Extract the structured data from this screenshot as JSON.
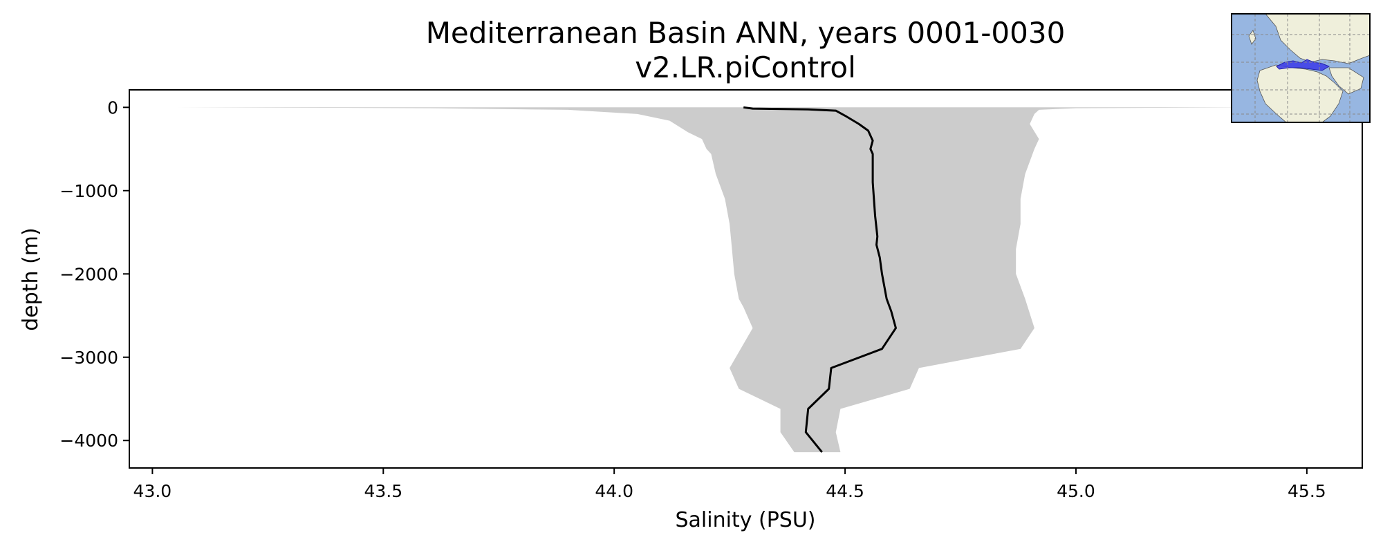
{
  "chart_data": {
    "type": "line",
    "title": "Mediterranean Basin ANN, years 0001-0030",
    "subtitle": "v2.LR.piControl",
    "xlabel": "Salinity (PSU)",
    "ylabel": "depth (m)",
    "xlim": [
      42.95,
      45.62
    ],
    "ylim": [
      -4330,
      210
    ],
    "xticks": [
      {
        "value": 43.0,
        "label": "43.0"
      },
      {
        "value": 43.5,
        "label": "43.5"
      },
      {
        "value": 44.0,
        "label": "44.0"
      },
      {
        "value": 44.5,
        "label": "44.5"
      },
      {
        "value": 45.0,
        "label": "45.0"
      },
      {
        "value": 45.5,
        "label": "45.5"
      }
    ],
    "yticks": [
      {
        "value": 0,
        "label": "0"
      },
      {
        "value": -1000,
        "label": "−1000"
      },
      {
        "value": -2000,
        "label": "−2000"
      },
      {
        "value": -3000,
        "label": "−3000"
      },
      {
        "value": -4000,
        "label": "−4000"
      }
    ],
    "grid": false,
    "colors": {
      "mean_line": "#000000",
      "range_fill": "#cccccc",
      "axes": "#000000"
    },
    "mean_profile": [
      {
        "x": 44.28,
        "y": 0
      },
      {
        "x": 44.3,
        "y": -15
      },
      {
        "x": 44.42,
        "y": -25
      },
      {
        "x": 44.48,
        "y": -40
      },
      {
        "x": 44.5,
        "y": -100
      },
      {
        "x": 44.53,
        "y": -200
      },
      {
        "x": 44.55,
        "y": -280
      },
      {
        "x": 44.56,
        "y": -400
      },
      {
        "x": 44.555,
        "y": -500
      },
      {
        "x": 44.56,
        "y": -560
      },
      {
        "x": 44.56,
        "y": -900
      },
      {
        "x": 44.565,
        "y": -1300
      },
      {
        "x": 44.57,
        "y": -1550
      },
      {
        "x": 44.568,
        "y": -1650
      },
      {
        "x": 44.575,
        "y": -1800
      },
      {
        "x": 44.58,
        "y": -2000
      },
      {
        "x": 44.59,
        "y": -2300
      },
      {
        "x": 44.6,
        "y": -2450
      },
      {
        "x": 44.61,
        "y": -2650
      },
      {
        "x": 44.58,
        "y": -2900
      },
      {
        "x": 44.47,
        "y": -3130
      },
      {
        "x": 44.465,
        "y": -3380
      },
      {
        "x": 44.42,
        "y": -3620
      },
      {
        "x": 44.415,
        "y": -3900
      },
      {
        "x": 44.45,
        "y": -4140
      }
    ],
    "range_band": {
      "min": [
        {
          "x": 43.05,
          "y": 0
        },
        {
          "x": 43.6,
          "y": -10
        },
        {
          "x": 43.9,
          "y": -30
        },
        {
          "x": 44.05,
          "y": -80
        },
        {
          "x": 44.12,
          "y": -160
        },
        {
          "x": 44.16,
          "y": -300
        },
        {
          "x": 44.19,
          "y": -380
        },
        {
          "x": 44.2,
          "y": -500
        },
        {
          "x": 44.21,
          "y": -560
        },
        {
          "x": 44.22,
          "y": -800
        },
        {
          "x": 44.24,
          "y": -1100
        },
        {
          "x": 44.25,
          "y": -1400
        },
        {
          "x": 44.255,
          "y": -1700
        },
        {
          "x": 44.26,
          "y": -2000
        },
        {
          "x": 44.27,
          "y": -2300
        },
        {
          "x": 44.28,
          "y": -2400
        },
        {
          "x": 44.3,
          "y": -2650
        },
        {
          "x": 44.25,
          "y": -3130
        },
        {
          "x": 44.27,
          "y": -3380
        },
        {
          "x": 44.36,
          "y": -3620
        },
        {
          "x": 44.36,
          "y": -3900
        },
        {
          "x": 44.39,
          "y": -4140
        }
      ],
      "max": [
        {
          "x": 45.42,
          "y": 0
        },
        {
          "x": 45.0,
          "y": -10
        },
        {
          "x": 44.92,
          "y": -30
        },
        {
          "x": 44.91,
          "y": -80
        },
        {
          "x": 44.9,
          "y": -200
        },
        {
          "x": 44.92,
          "y": -380
        },
        {
          "x": 44.91,
          "y": -500
        },
        {
          "x": 44.89,
          "y": -800
        },
        {
          "x": 44.88,
          "y": -1100
        },
        {
          "x": 44.88,
          "y": -1400
        },
        {
          "x": 44.87,
          "y": -1700
        },
        {
          "x": 44.87,
          "y": -2000
        },
        {
          "x": 44.89,
          "y": -2300
        },
        {
          "x": 44.91,
          "y": -2650
        },
        {
          "x": 44.88,
          "y": -2900
        },
        {
          "x": 44.66,
          "y": -3130
        },
        {
          "x": 44.64,
          "y": -3380
        },
        {
          "x": 44.49,
          "y": -3620
        },
        {
          "x": 44.48,
          "y": -3900
        },
        {
          "x": 44.49,
          "y": -4140
        }
      ]
    },
    "inset_map": {
      "region": "Mediterranean Basin",
      "colors": {
        "ocean": "#97b6e1",
        "land": "#efefdb",
        "highlight": "#3a3ae8",
        "grid": "#888888"
      }
    }
  }
}
